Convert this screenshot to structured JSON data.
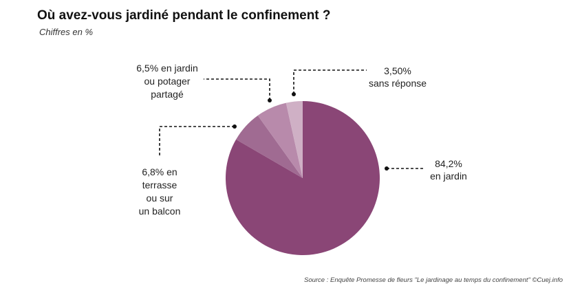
{
  "header": {
    "title": "Où avez-vous jardiné pendant le confinement ?",
    "subtitle": "Chiffres en %"
  },
  "footer": {
    "source": "Source : Enquête Promesse de fleurs \"Le jardinage au temps du confinement\" ©Cuej.info"
  },
  "chart_data": {
    "type": "pie",
    "title": "Où avez-vous jardiné pendant le confinement ?",
    "subtitle": "Chiffres en %",
    "unit": "%",
    "slices": [
      {
        "label_lines": [
          "84,2%",
          "en jardin"
        ],
        "value": 84.2,
        "color": "#8a4676"
      },
      {
        "label_lines": [
          "6,8% en",
          "terrasse",
          "ou sur",
          "un balcon"
        ],
        "value": 6.8,
        "color": "#a06b92"
      },
      {
        "label_lines": [
          "6,5% en jardin",
          "ou potager",
          "partagé"
        ],
        "value": 6.5,
        "color": "#b88aab"
      },
      {
        "label_lines": [
          "3,50%",
          "sans réponse"
        ],
        "value": 3.5,
        "color": "#cfb0c5"
      }
    ],
    "start_angle": "12 o'clock",
    "direction": "clockwise",
    "legend": "none (direct labels with dashed leader lines)"
  }
}
